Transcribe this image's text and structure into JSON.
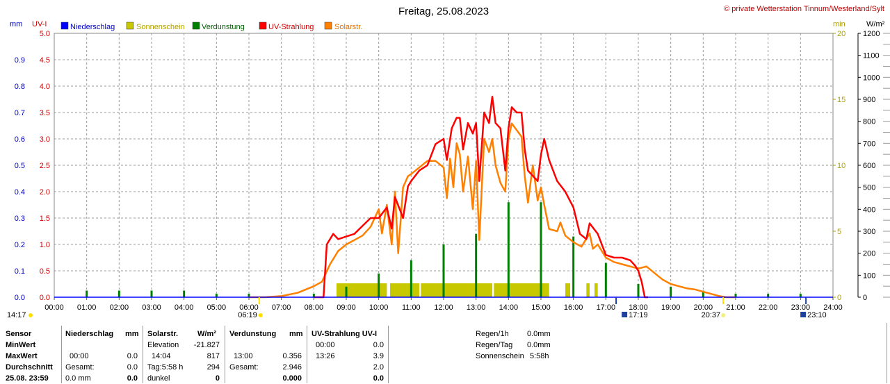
{
  "header": {
    "title": "Freitag, 25.08.2023",
    "copyright": "© private Wetterstation Tinnum/Westerland/Sylt"
  },
  "chart_data": {
    "type": "line",
    "title": "Freitag, 25.08.2023",
    "xlabel": "",
    "ylabels": {
      "mm": "mm",
      "uv": "UV-I",
      "min": "min",
      "wm2": "W/m²"
    },
    "xlim": [
      "00:00",
      "24:00"
    ],
    "ylim_mm": [
      0,
      1.0
    ],
    "ylim_uv": [
      0,
      5.0
    ],
    "ylim_min": [
      0,
      20
    ],
    "ylim_wm2": [
      0,
      1200
    ],
    "grid": true,
    "legend_position": "top",
    "legend": [
      {
        "name": "Niederschlag",
        "color": "#0000ff"
      },
      {
        "name": "Sonnenschein",
        "color": "#c8c800"
      },
      {
        "name": "Verdunstung",
        "color": "#008000"
      },
      {
        "name": "UV-Strahlung",
        "color": "#ff0000"
      },
      {
        "name": "Solarstr.",
        "color": "#ff8000"
      }
    ],
    "x_ticks": [
      "00:00",
      "01:00",
      "02:00",
      "03:00",
      "04:00",
      "05:00",
      "06:00",
      "07:00",
      "08:00",
      "09:00",
      "10:00",
      "11:00",
      "12:00",
      "13:00",
      "14:00",
      "15:00",
      "16:00",
      "17:00",
      "18:00",
      "19:00",
      "20:00",
      "21:00",
      "22:00",
      "23:00",
      "24:00"
    ],
    "y_ticks_mm": [
      "0.0",
      "0.1",
      "0.2",
      "0.3",
      "0.4",
      "0.5",
      "0.6",
      "0.7",
      "0.8",
      "0.9"
    ],
    "y_ticks_uv": [
      "0.0",
      "0.5",
      "1.0",
      "1.5",
      "2.0",
      "2.5",
      "3.0",
      "3.5",
      "4.0",
      "4.5",
      "5.0"
    ],
    "y_ticks_min": [
      "0",
      "5",
      "10",
      "15",
      "20"
    ],
    "y_ticks_wm2": [
      "0",
      "100",
      "200",
      "300",
      "400",
      "500",
      "600",
      "700",
      "800",
      "900",
      "1000",
      "1100",
      "1200"
    ],
    "solar_wm2": [
      [
        6.0,
        0
      ],
      [
        6.5,
        0
      ],
      [
        7.0,
        5
      ],
      [
        7.5,
        20
      ],
      [
        8.0,
        50
      ],
      [
        8.25,
        70
      ],
      [
        8.5,
        150
      ],
      [
        8.75,
        210
      ],
      [
        9.0,
        240
      ],
      [
        9.25,
        260
      ],
      [
        9.5,
        280
      ],
      [
        9.75,
        320
      ],
      [
        10.0,
        400
      ],
      [
        10.1,
        290
      ],
      [
        10.25,
        420
      ],
      [
        10.4,
        240
      ],
      [
        10.5,
        480
      ],
      [
        10.6,
        200
      ],
      [
        10.75,
        500
      ],
      [
        10.9,
        550
      ],
      [
        11.0,
        560
      ],
      [
        11.25,
        590
      ],
      [
        11.5,
        620
      ],
      [
        11.75,
        620
      ],
      [
        12.0,
        590
      ],
      [
        12.1,
        450
      ],
      [
        12.2,
        630
      ],
      [
        12.3,
        500
      ],
      [
        12.4,
        700
      ],
      [
        12.5,
        650
      ],
      [
        12.6,
        480
      ],
      [
        12.75,
        640
      ],
      [
        12.9,
        400
      ],
      [
        13.0,
        620
      ],
      [
        13.1,
        260
      ],
      [
        13.25,
        720
      ],
      [
        13.4,
        660
      ],
      [
        13.5,
        720
      ],
      [
        13.6,
        600
      ],
      [
        13.75,
        520
      ],
      [
        13.9,
        480
      ],
      [
        14.0,
        720
      ],
      [
        14.1,
        790
      ],
      [
        14.25,
        760
      ],
      [
        14.4,
        730
      ],
      [
        14.5,
        550
      ],
      [
        14.6,
        430
      ],
      [
        14.75,
        600
      ],
      [
        14.9,
        440
      ],
      [
        15.0,
        500
      ],
      [
        15.1,
        420
      ],
      [
        15.25,
        310
      ],
      [
        15.5,
        300
      ],
      [
        15.6,
        340
      ],
      [
        15.75,
        280
      ],
      [
        16.0,
        250
      ],
      [
        16.25,
        230
      ],
      [
        16.5,
        290
      ],
      [
        16.6,
        220
      ],
      [
        16.75,
        240
      ],
      [
        17.0,
        180
      ],
      [
        17.25,
        160
      ],
      [
        17.5,
        150
      ],
      [
        17.75,
        140
      ],
      [
        18.0,
        130
      ],
      [
        18.25,
        140
      ],
      [
        18.5,
        110
      ],
      [
        18.75,
        80
      ],
      [
        19.0,
        60
      ],
      [
        19.25,
        50
      ],
      [
        19.5,
        40
      ],
      [
        19.75,
        35
      ],
      [
        20.0,
        25
      ],
      [
        20.25,
        15
      ],
      [
        20.5,
        5
      ],
      [
        20.7,
        0
      ],
      [
        21.0,
        0
      ]
    ],
    "uv_index": [
      [
        8.0,
        0.0
      ],
      [
        8.3,
        0.0
      ],
      [
        8.4,
        1.0
      ],
      [
        8.6,
        1.2
      ],
      [
        8.75,
        1.1
      ],
      [
        9.0,
        1.15
      ],
      [
        9.25,
        1.2
      ],
      [
        9.5,
        1.35
      ],
      [
        9.75,
        1.5
      ],
      [
        10.0,
        1.5
      ],
      [
        10.25,
        1.7
      ],
      [
        10.4,
        1.3
      ],
      [
        10.5,
        1.9
      ],
      [
        10.75,
        1.5
      ],
      [
        10.9,
        2.1
      ],
      [
        11.0,
        2.2
      ],
      [
        11.25,
        2.4
      ],
      [
        11.5,
        2.5
      ],
      [
        11.75,
        2.9
      ],
      [
        12.0,
        3.0
      ],
      [
        12.1,
        2.6
      ],
      [
        12.25,
        3.2
      ],
      [
        12.4,
        3.4
      ],
      [
        12.5,
        3.4
      ],
      [
        12.6,
        2.8
      ],
      [
        12.75,
        3.3
      ],
      [
        12.9,
        3.1
      ],
      [
        13.0,
        3.3
      ],
      [
        13.1,
        2.2
      ],
      [
        13.25,
        3.5
      ],
      [
        13.4,
        3.3
      ],
      [
        13.5,
        3.8
      ],
      [
        13.6,
        3.3
      ],
      [
        13.75,
        3.2
      ],
      [
        13.9,
        2.4
      ],
      [
        14.0,
        3.2
      ],
      [
        14.1,
        3.6
      ],
      [
        14.25,
        3.5
      ],
      [
        14.4,
        3.5
      ],
      [
        14.5,
        2.8
      ],
      [
        14.6,
        2.4
      ],
      [
        14.75,
        2.3
      ],
      [
        14.9,
        2.2
      ],
      [
        15.0,
        2.7
      ],
      [
        15.1,
        3.0
      ],
      [
        15.25,
        2.6
      ],
      [
        15.5,
        2.2
      ],
      [
        15.75,
        2.0
      ],
      [
        16.0,
        1.7
      ],
      [
        16.2,
        1.2
      ],
      [
        16.4,
        1.1
      ],
      [
        16.5,
        1.4
      ],
      [
        16.75,
        1.2
      ],
      [
        17.0,
        0.8
      ],
      [
        17.25,
        0.75
      ],
      [
        17.5,
        0.75
      ],
      [
        17.75,
        0.7
      ],
      [
        17.9,
        0.6
      ],
      [
        18.0,
        0.5
      ],
      [
        18.1,
        0.3
      ],
      [
        18.2,
        0.0
      ],
      [
        18.3,
        0.0
      ]
    ],
    "sonnenschein_intervals_h": [
      [
        8.7,
        10.25
      ],
      [
        10.35,
        11.25
      ],
      [
        11.3,
        13.5
      ],
      [
        13.55,
        15.25
      ],
      [
        15.75,
        15.9
      ],
      [
        16.4,
        16.5
      ],
      [
        16.65,
        16.75
      ]
    ],
    "verdunstung_bars": [
      [
        1,
        0.025
      ],
      [
        2,
        0.025
      ],
      [
        3,
        0.025
      ],
      [
        4,
        0.025
      ],
      [
        5,
        0.013
      ],
      [
        6,
        0.013
      ],
      [
        8,
        0.013
      ],
      [
        9,
        0.04
      ],
      [
        10,
        0.09
      ],
      [
        11,
        0.14
      ],
      [
        12,
        0.2
      ],
      [
        13,
        0.24
      ],
      [
        14,
        0.36
      ],
      [
        15,
        0.36
      ],
      [
        16,
        0.23
      ],
      [
        17,
        0.13
      ],
      [
        18,
        0.05
      ],
      [
        19,
        0.04
      ],
      [
        20,
        0.025
      ],
      [
        21,
        0.013
      ],
      [
        22,
        0.013
      ],
      [
        23,
        0.013
      ]
    ],
    "time_markers": {
      "start": "14:17",
      "sunrise": "06:19",
      "civil_dusk": "17:19",
      "sunset": "20:37",
      "end": "23:10"
    }
  },
  "table": {
    "col1": {
      "rows": [
        "Sensor",
        "MinWert",
        "MaxWert",
        "Durchschnitt",
        "25.08. 23:59"
      ]
    },
    "niederschlag": {
      "header": "Niederschlag",
      "unit": "mm",
      "max_time": "00:00",
      "max_val": "0.0",
      "gesamt_label": "Gesamt:",
      "gesamt_val": "0.0",
      "last_val": "0.0 mm",
      "last_bold": "0.0"
    },
    "solar": {
      "header": "Solarstr.",
      "unit": "W/m²",
      "elev_label": "Elevation",
      "elev_val": "-21.827",
      "max_time": "14:04",
      "max_val": "817",
      "tag_label": "Tag:5:58 h",
      "avg_val": "294",
      "dunkel_label": "dunkel",
      "last_val": "0"
    },
    "verdunstung": {
      "header": "Verdunstung",
      "unit": "mm",
      "max_time": "13:00",
      "max_val": "0.356",
      "gesamt_label": "Gesamt:",
      "gesamt_val": "2.946",
      "last_val": "0.000"
    },
    "uv": {
      "header": "UV-Strahlung UV-I",
      "min_time": "00:00",
      "min_val": "0.0",
      "max_time": "13:26",
      "max_val": "3.9",
      "avg_val": "2.0",
      "last_val": "0.0"
    },
    "summary": {
      "regen1h_label": "Regen/1h",
      "regen1h_val": "0.0mm",
      "regentag_label": "Regen/Tag",
      "regentag_val": "0.0mm",
      "sonne_label": "Sonnenschein",
      "sonne_val": "5:58h"
    }
  }
}
